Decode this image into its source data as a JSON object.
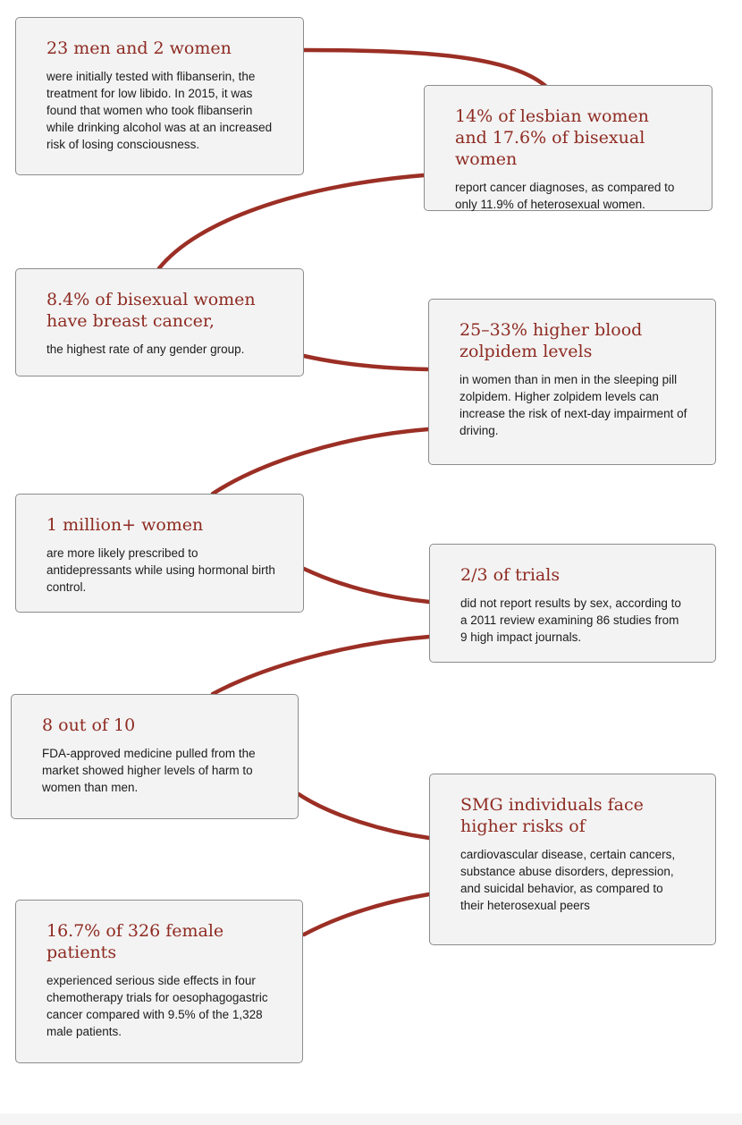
{
  "colors": {
    "connector": "#9b2f25",
    "heading": "#8e2b22",
    "card_background": "#f3f3f3",
    "card_border": "#8c8c8c"
  },
  "cards": [
    {
      "heading": "23 men and 2 women",
      "body": "were initially tested with flibanserin, the treatment for low libido. In 2015, it was found that women who took flibanserin while drinking alcohol was at an increased risk of losing consciousness."
    },
    {
      "heading": "14% of lesbian women and 17.6% of bisexual women",
      "body": "report cancer diagnoses, as compared to only 11.9% of heterosexual women."
    },
    {
      "heading": "8.4% of bisexual women have breast cancer,",
      "body": "the highest rate of any gender group."
    },
    {
      "heading": "25–33% higher blood zolpidem levels",
      "body": "in women than in men in the sleeping pill zolpidem. Higher zolpidem levels can increase the risk of next-day impairment of driving."
    },
    {
      "heading": "1 million+ women",
      "body": "are more likely prescribed to antidepressants while using hormonal birth control."
    },
    {
      "heading": "2/3 of trials",
      "body": "did not report results by sex, according to a 2011 review examining 86 studies from 9 high impact journals."
    },
    {
      "heading": "8 out of 10",
      "body": "FDA-approved medicine pulled from the market showed higher levels of harm to women than men."
    },
    {
      "heading": "SMG individuals face higher risks of",
      "body": "cardiovascular disease, certain cancers, substance abuse disorders, depression, and suicidal behavior, as compared to their heterosexual peers"
    },
    {
      "heading": "16.7% of 326 female patients",
      "body": "experienced serious side effects in four chemotherapy trials for oesophagogastric cancer compared with 9.5% of the 1,328 male patients."
    }
  ]
}
